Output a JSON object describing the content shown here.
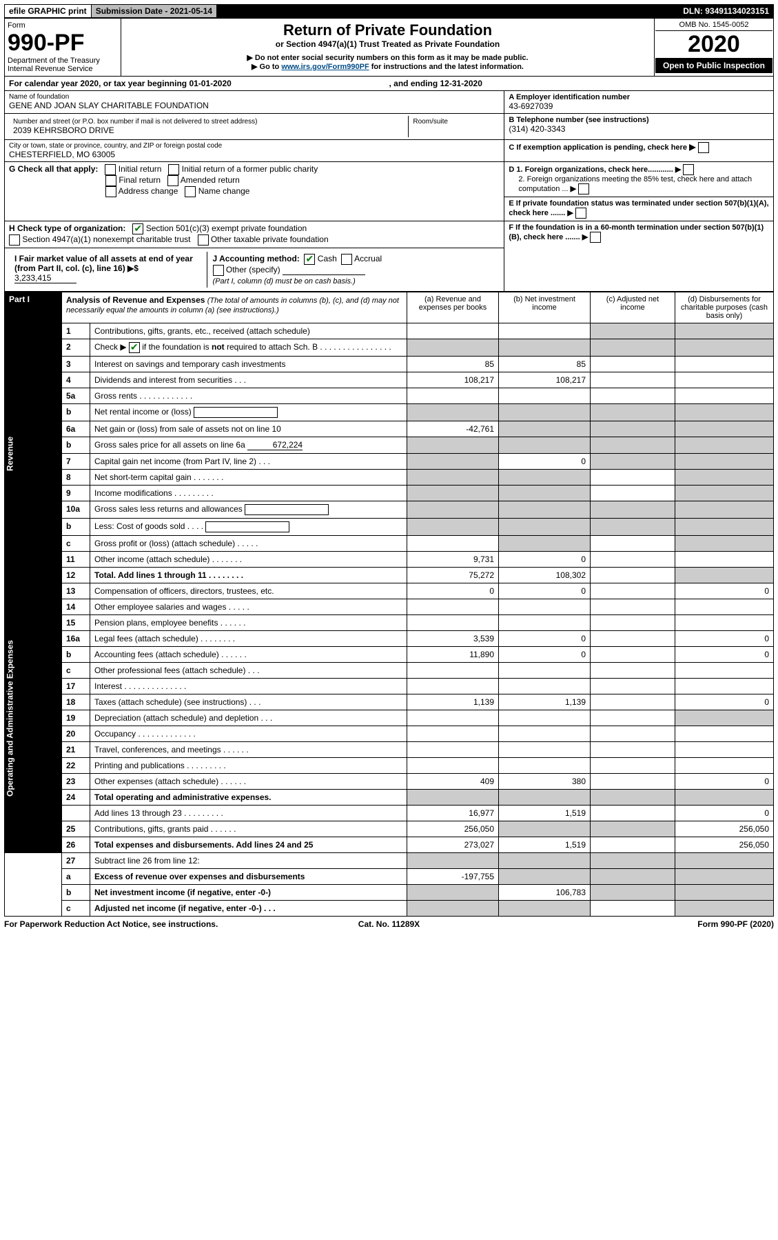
{
  "topbar": {
    "efile": "efile GRAPHIC print",
    "submission_label": "Submission Date - 2021-05-14",
    "dln": "DLN: 93491134023151"
  },
  "header": {
    "form_word": "Form",
    "form_number": "990-PF",
    "dept": "Department of the Treasury",
    "irs": "Internal Revenue Service",
    "title": "Return of Private Foundation",
    "subtitle": "or Section 4947(a)(1) Trust Treated as Private Foundation",
    "warn1": "▶ Do not enter social security numbers on this form as it may be made public.",
    "warn2_pre": "▶ Go to ",
    "warn2_link": "www.irs.gov/Form990PF",
    "warn2_post": " for instructions and the latest information.",
    "omb": "OMB No. 1545-0052",
    "year": "2020",
    "open": "Open to Public Inspection"
  },
  "cal": {
    "text": "For calendar year 2020, or tax year beginning 01-01-2020",
    "ending": ", and ending 12-31-2020"
  },
  "id": {
    "name_label": "Name of foundation",
    "name": "GENE AND JOAN SLAY CHARITABLE FOUNDATION",
    "addr_label": "Number and street (or P.O. box number if mail is not delivered to street address)",
    "room_label": "Room/suite",
    "addr": "2039 KEHRSBORO DRIVE",
    "city_label": "City or town, state or province, country, and ZIP or foreign postal code",
    "city": "CHESTERFIELD, MO  63005",
    "a_label": "A Employer identification number",
    "ein": "43-6927039",
    "b_label": "B Telephone number (see instructions)",
    "phone": "(314) 420-3343",
    "c_label": "C If exemption application is pending, check here",
    "d1": "D 1. Foreign organizations, check here............",
    "d2": "2. Foreign organizations meeting the 85% test, check here and attach computation ...",
    "e": "E  If private foundation status was terminated under section 507(b)(1)(A), check here .......",
    "f": "F  If the foundation is in a 60-month termination under section 507(b)(1)(B), check here .......",
    "g_label": "G Check all that apply:",
    "g_opts": [
      "Initial return",
      "Initial return of a former public charity",
      "Final return",
      "Amended return",
      "Address change",
      "Name change"
    ],
    "h_label": "H Check type of organization:",
    "h_opts": [
      "Section 501(c)(3) exempt private foundation",
      "Section 4947(a)(1) nonexempt charitable trust",
      "Other taxable private foundation"
    ],
    "i_label": "I Fair market value of all assets at end of year (from Part II, col. (c), line 16)",
    "i_val": "3,233,415",
    "j_label": "J Accounting method:",
    "j_opts": [
      "Cash",
      "Accrual"
    ],
    "j_other": "Other (specify)",
    "j_note": "(Part I, column (d) must be on cash basis.)"
  },
  "part1": {
    "label": "Part I",
    "title": "Analysis of Revenue and Expenses",
    "note": "(The total of amounts in columns (b), (c), and (d) may not necessarily equal the amounts in column (a) (see instructions).)",
    "cols": {
      "a": "(a)  Revenue and expenses per books",
      "b": "(b)  Net investment income",
      "c": "(c)  Adjusted net income",
      "d": "(d)  Disbursements for charitable purposes (cash basis only)"
    },
    "side": {
      "rev": "Revenue",
      "ops": "Operating and Administrative Expenses"
    },
    "rows": [
      {
        "n": "1",
        "t": "Contributions, gifts, grants, etc., received (attach schedule)",
        "shade_b": false,
        "shade_c": true,
        "shade_d": true
      },
      {
        "n": "2",
        "t": "Check ▶   if the foundation is not required to attach Sch. B      .   .   .   .   .   .   .   .   .   .   .   .   .   .   .   .",
        "chk": true,
        "shade_b": true,
        "shade_c": true,
        "shade_d": true,
        "shade_a": true
      },
      {
        "n": "3",
        "t": "Interest on savings and temporary cash investments",
        "a": "85",
        "b": "85"
      },
      {
        "n": "4",
        "t": "Dividends and interest from securities    .   .   .",
        "a": "108,217",
        "b": "108,217"
      },
      {
        "n": "5a",
        "t": "Gross rents    .   .   .   .   .   .   .   .   .   .   .   ."
      },
      {
        "n": "b",
        "t": "Net rental income or (loss)",
        "shade_a": true,
        "shade_b": true,
        "shade_c": true,
        "shade_d": true,
        "inline_box": true
      },
      {
        "n": "6a",
        "t": "Net gain or (loss) from sale of assets not on line 10",
        "a": "-42,761",
        "shade_b": true,
        "shade_c": true,
        "shade_d": true
      },
      {
        "n": "b",
        "t": "Gross sales price for all assets on line 6a",
        "inline_val": "672,224",
        "shade_a": true,
        "shade_b": true,
        "shade_c": true,
        "shade_d": true
      },
      {
        "n": "7",
        "t": "Capital gain net income (from Part IV, line 2)   .   .   .",
        "shade_a": true,
        "b": "0",
        "shade_c": true,
        "shade_d": true
      },
      {
        "n": "8",
        "t": "Net short-term capital gain   .   .   .   .   .   .   .",
        "shade_a": true,
        "shade_b": true,
        "shade_d": true
      },
      {
        "n": "9",
        "t": "Income modifications  .   .   .   .   .   .   .   .   .",
        "shade_a": true,
        "shade_b": true,
        "shade_d": true
      },
      {
        "n": "10a",
        "t": "Gross sales less returns and allowances",
        "inline_box": true,
        "shade_a": true,
        "shade_b": true,
        "shade_c": true,
        "shade_d": true
      },
      {
        "n": "b",
        "t": "Less: Cost of goods sold     .   .   .   .",
        "inline_box": true,
        "shade_a": true,
        "shade_b": true,
        "shade_c": true,
        "shade_d": true
      },
      {
        "n": "c",
        "t": "Gross profit or (loss) (attach schedule)     .   .   .   .   .",
        "shade_b": true,
        "shade_d": true
      },
      {
        "n": "11",
        "t": "Other income (attach schedule)    .   .   .   .   .   .   .",
        "a": "9,731",
        "b": "0"
      },
      {
        "n": "12",
        "t": "Total. Add lines 1 through 11    .   .   .   .   .   .   .   .",
        "bold": true,
        "a": "75,272",
        "b": "108,302",
        "shade_d": true
      },
      {
        "sep": "ops"
      },
      {
        "n": "13",
        "t": "Compensation of officers, directors, trustees, etc.",
        "a": "0",
        "b": "0",
        "d": "0"
      },
      {
        "n": "14",
        "t": "Other employee salaries and wages    .   .   .   .   ."
      },
      {
        "n": "15",
        "t": "Pension plans, employee benefits  .   .   .   .   .   ."
      },
      {
        "n": "16a",
        "t": "Legal fees (attach schedule)  .   .   .   .   .   .   .   .",
        "a": "3,539",
        "b": "0",
        "d": "0"
      },
      {
        "n": "b",
        "t": "Accounting fees (attach schedule)  .   .   .   .   .   .",
        "a": "11,890",
        "b": "0",
        "d": "0"
      },
      {
        "n": "c",
        "t": "Other professional fees (attach schedule)    .   .   ."
      },
      {
        "n": "17",
        "t": "Interest  .   .   .   .   .   .   .   .   .   .   .   .   .   ."
      },
      {
        "n": "18",
        "t": "Taxes (attach schedule) (see instructions)      .   .   .",
        "a": "1,139",
        "b": "1,139",
        "d": "0"
      },
      {
        "n": "19",
        "t": "Depreciation (attach schedule) and depletion    .   .   .",
        "shade_d": true
      },
      {
        "n": "20",
        "t": "Occupancy  .   .   .   .   .   .   .   .   .   .   .   .   ."
      },
      {
        "n": "21",
        "t": "Travel, conferences, and meetings  .   .   .   .   .   ."
      },
      {
        "n": "22",
        "t": "Printing and publications  .   .   .   .   .   .   .   .   ."
      },
      {
        "n": "23",
        "t": "Other expenses (attach schedule)  .   .   .   .   .   .",
        "a": "409",
        "b": "380",
        "d": "0"
      },
      {
        "n": "24",
        "t": "Total operating and administrative expenses.",
        "bold": true,
        "shade_a": true,
        "shade_b": true,
        "shade_c": true,
        "shade_d": true
      },
      {
        "n": "",
        "t": "Add lines 13 through 23   .   .   .   .   .   .   .   .   .",
        "a": "16,977",
        "b": "1,519",
        "d": "0"
      },
      {
        "n": "25",
        "t": "Contributions, gifts, grants paid     .   .   .   .   .   .",
        "a": "256,050",
        "shade_b": true,
        "shade_c": true,
        "d": "256,050"
      },
      {
        "n": "26",
        "t": "Total expenses and disbursements. Add lines 24 and 25",
        "bold": true,
        "a": "273,027",
        "b": "1,519",
        "d": "256,050"
      },
      {
        "sep": "foot"
      },
      {
        "n": "27",
        "t": "Subtract line 26 from line 12:",
        "shade_a": true,
        "shade_b": true,
        "shade_c": true,
        "shade_d": true
      },
      {
        "n": "a",
        "t": "Excess of revenue over expenses and disbursements",
        "bold": true,
        "a": "-197,755",
        "shade_b": true,
        "shade_c": true,
        "shade_d": true
      },
      {
        "n": "b",
        "t": "Net investment income (if negative, enter -0-)",
        "bold": true,
        "shade_a": true,
        "b": "106,783",
        "shade_c": true,
        "shade_d": true
      },
      {
        "n": "c",
        "t": "Adjusted net income (if negative, enter -0-)    .   .   .",
        "bold": true,
        "shade_a": true,
        "shade_b": true,
        "shade_d": true
      }
    ]
  },
  "footer": {
    "paperwork": "For Paperwork Reduction Act Notice, see instructions.",
    "cat": "Cat. No. 11289X",
    "formref": "Form 990-PF (2020)"
  }
}
